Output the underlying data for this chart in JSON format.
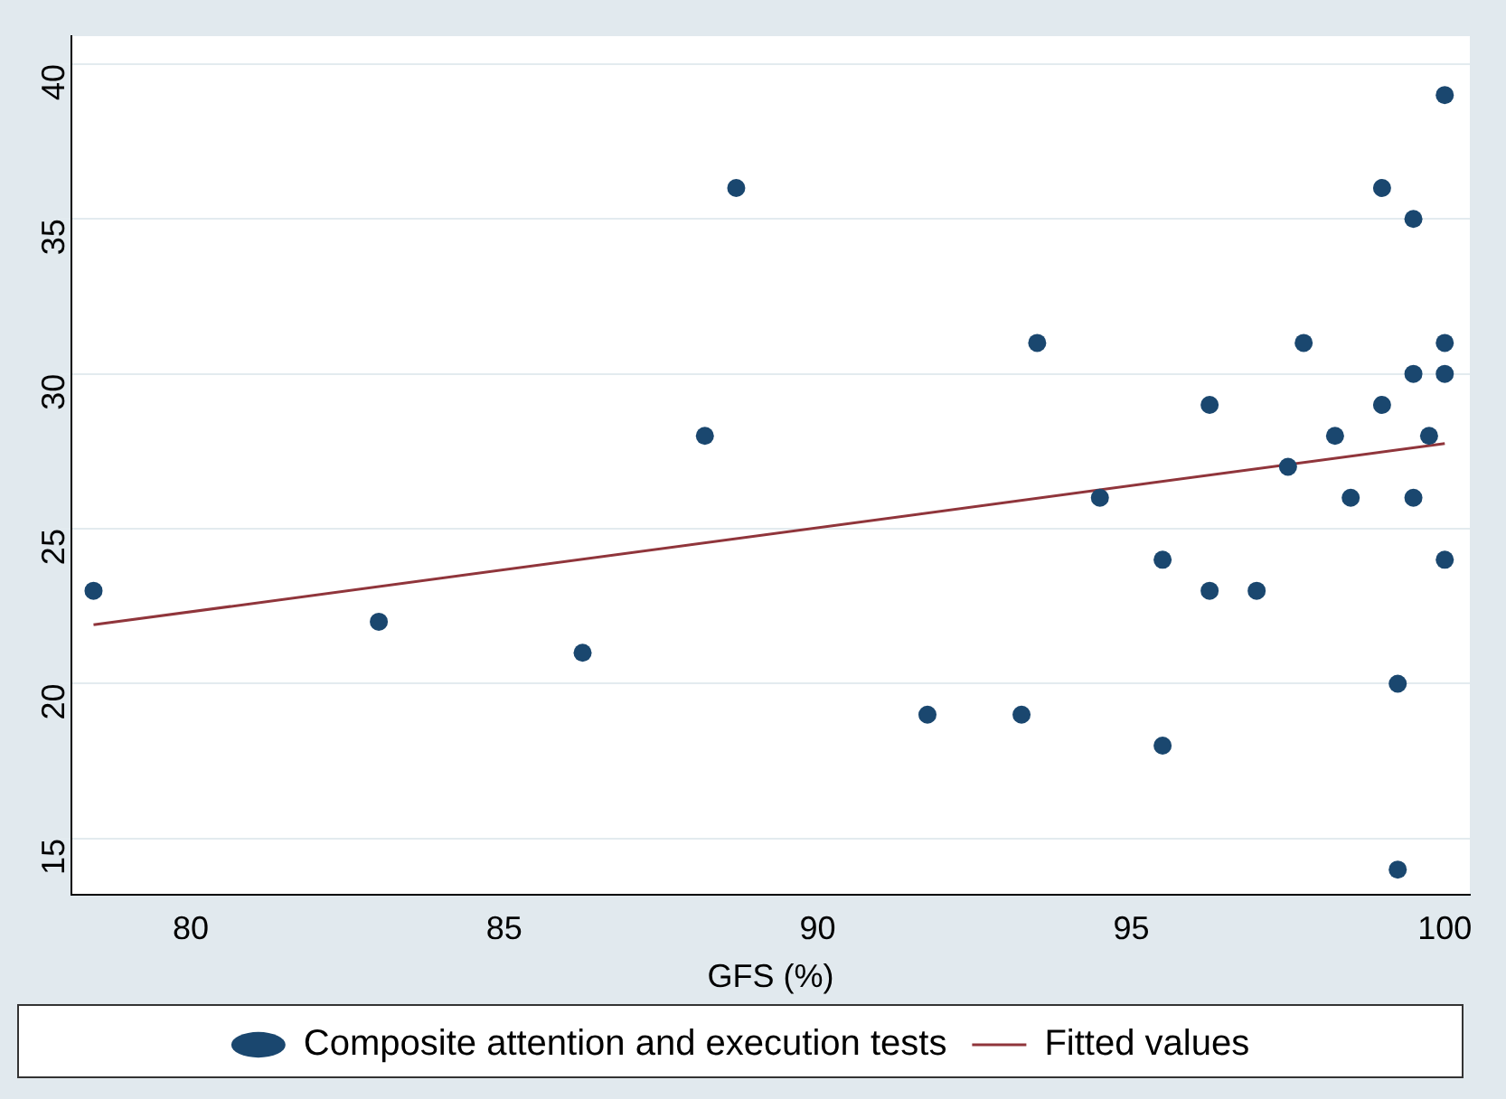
{
  "chart_data": {
    "type": "scatter",
    "xlabel": "GFS (%)",
    "xlim": [
      78.1,
      100.4
    ],
    "xticks": [
      80,
      85,
      90,
      95,
      100
    ],
    "ylim": [
      13.2,
      40.9
    ],
    "yticks": [
      15,
      20,
      25,
      30,
      35,
      40
    ],
    "grid": "y",
    "legend": "bottom",
    "series": [
      {
        "name": "Composite attention and execution tests",
        "color": "#1a476f",
        "marker": "circle",
        "x": [
          78.45,
          83,
          86.25,
          88.2,
          88.7,
          91.75,
          93.25,
          93.5,
          94.5,
          95.5,
          95.5,
          96.25,
          96.25,
          97,
          97.5,
          97.75,
          98.25,
          98.5,
          99,
          99,
          99.25,
          99.25,
          99.5,
          99.5,
          99.5,
          99.75,
          100,
          100,
          100,
          100
        ],
        "values": [
          23,
          22,
          21,
          28,
          36,
          19,
          19,
          31,
          26,
          24,
          18,
          29,
          23,
          23,
          27,
          31,
          28,
          26,
          36,
          29,
          20,
          14,
          35,
          30,
          26,
          28,
          39,
          31,
          30,
          24
        ]
      },
      {
        "name": "Fitted values",
        "type": "line",
        "color": "#90353b",
        "line_style": "solid",
        "marker": "none",
        "x": [
          78.45,
          100
        ],
        "values": [
          21.9,
          27.75
        ]
      }
    ]
  }
}
